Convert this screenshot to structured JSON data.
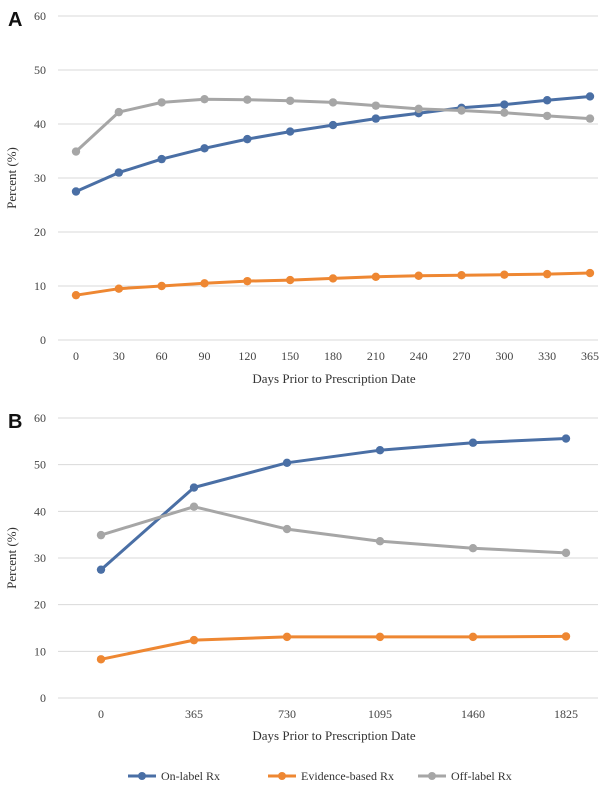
{
  "chart_data": [
    {
      "type": "line",
      "panel_label": "A",
      "xlabel": "Days Prior to Prescription Date",
      "ylabel": "Percent (%)",
      "ylim": [
        0,
        60
      ],
      "yticks": [
        0,
        10,
        20,
        30,
        40,
        50,
        60
      ],
      "grid": true,
      "categories": [
        "0",
        "30",
        "60",
        "90",
        "120",
        "150",
        "180",
        "210",
        "240",
        "270",
        "300",
        "330",
        "365"
      ],
      "series": [
        {
          "name": "On-label Rx",
          "color": "#4a6fa5",
          "values": [
            27.5,
            31.0,
            33.5,
            35.5,
            37.2,
            38.6,
            39.8,
            41.0,
            42.0,
            43.0,
            43.6,
            44.4,
            45.1
          ]
        },
        {
          "name": "Evidence-based Rx",
          "color": "#ee8732",
          "values": [
            8.3,
            9.5,
            10.0,
            10.5,
            10.9,
            11.1,
            11.4,
            11.7,
            11.9,
            12.0,
            12.1,
            12.2,
            12.4
          ]
        },
        {
          "name": "Off-label Rx",
          "color": "#a6a6a6",
          "values": [
            34.9,
            42.2,
            44.0,
            44.6,
            44.5,
            44.3,
            44.0,
            43.4,
            42.8,
            42.5,
            42.1,
            41.5,
            41.0
          ]
        }
      ]
    },
    {
      "type": "line",
      "panel_label": "B",
      "xlabel": "Days Prior to Prescription Date",
      "ylabel": "Percent (%)",
      "ylim": [
        0,
        60
      ],
      "yticks": [
        0,
        10,
        20,
        30,
        40,
        50,
        60
      ],
      "grid": true,
      "categories": [
        "0",
        "365",
        "730",
        "1095",
        "1460",
        "1825"
      ],
      "series": [
        {
          "name": "On-label Rx",
          "color": "#4a6fa5",
          "values": [
            27.5,
            45.1,
            50.4,
            53.1,
            54.7,
            55.6
          ]
        },
        {
          "name": "Evidence-based Rx",
          "color": "#ee8732",
          "values": [
            8.3,
            12.4,
            13.1,
            13.1,
            13.1,
            13.2
          ]
        },
        {
          "name": "Off-label Rx",
          "color": "#a6a6a6",
          "values": [
            34.9,
            41.0,
            36.2,
            33.6,
            32.1,
            31.1
          ]
        }
      ]
    }
  ],
  "legend": {
    "placement": "bottom-center",
    "items": [
      {
        "label": "On-label Rx",
        "color": "#4a6fa5"
      },
      {
        "label": "Evidence-based Rx",
        "color": "#ee8732"
      },
      {
        "label": "Off-label Rx",
        "color": "#a6a6a6"
      }
    ]
  }
}
